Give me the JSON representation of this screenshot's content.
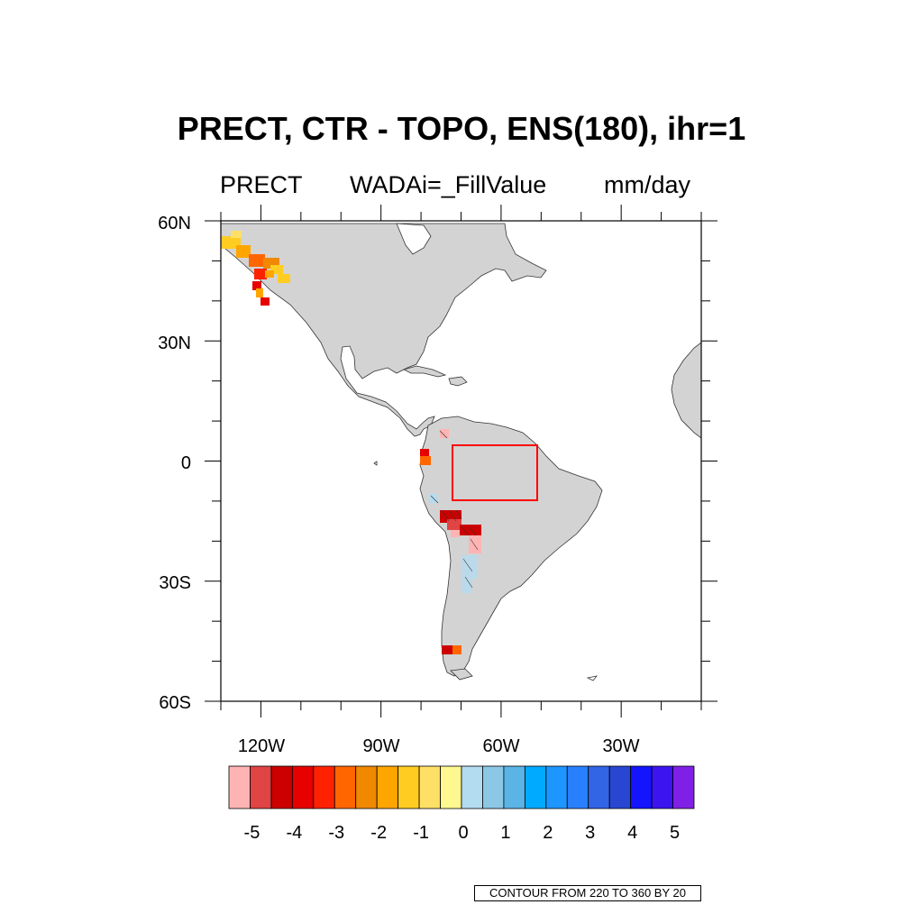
{
  "title": "PRECT, CTR - TOPO, ENS(180), ihr=1",
  "subtitle": {
    "left": "PRECT",
    "center": "WADAi=_FillValue",
    "right": "mm/day"
  },
  "lat_labels": [
    "60N",
    "30N",
    "0",
    "30S",
    "60S"
  ],
  "lon_labels": [
    "120W",
    "90W",
    "60W",
    "30W"
  ],
  "colorbar": {
    "labels": [
      "-5",
      "-4",
      "-3",
      "-2",
      "-1",
      "0",
      "1",
      "2",
      "3",
      "4",
      "5"
    ],
    "colors": [
      "#ffb4b4",
      "#e04444",
      "#cc0000",
      "#e60000",
      "#ff2200",
      "#ff6600",
      "#f08800",
      "#ffa500",
      "#ffcc22",
      "#ffe066",
      "#fff890",
      "#b4dcf0",
      "#8cc8e6",
      "#5ab4e6",
      "#00aaff",
      "#1e96ff",
      "#2880ff",
      "#3264e6",
      "#2846d2",
      "#1414ff",
      "#3c14f0",
      "#8020e6"
    ]
  },
  "region_box": {
    "lon_range": [
      -72,
      -51
    ],
    "lat_range": [
      -10,
      4
    ],
    "color": "#ff0000"
  },
  "footer": "CONTOUR FROM 220 TO 360 BY 20",
  "colors": {
    "land": "#d3d3d3",
    "ocean": "#ffffff",
    "frame": "#000000"
  }
}
